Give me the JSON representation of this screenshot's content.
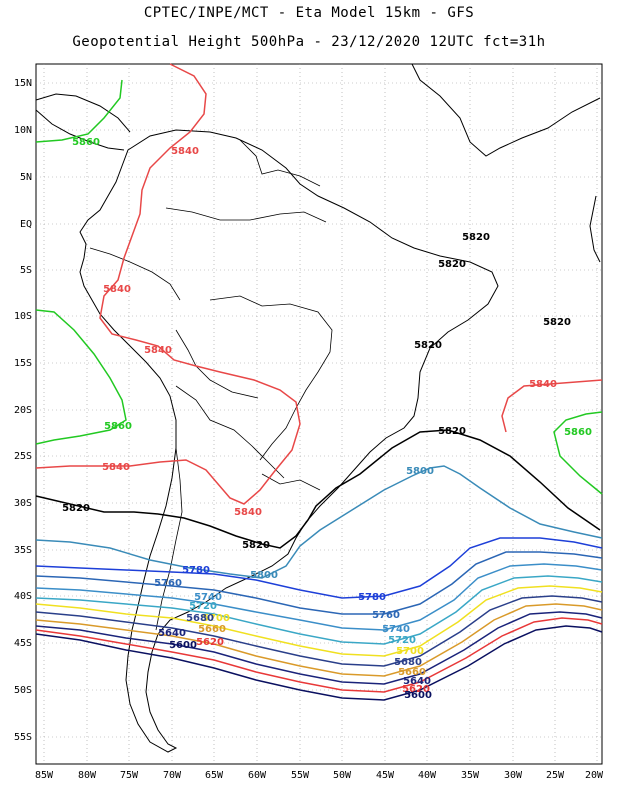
{
  "header": {
    "line1": "CPTEC/INPE/MCT -  Eta Model 15km - GFS",
    "line2": "Geopotential Height 500hPa - 23/12/2020 12UTC fct=31h"
  },
  "axes": {
    "lat_labels": [
      "15N",
      "10N",
      "5N",
      "EQ",
      "5S",
      "10S",
      "15S",
      "20S",
      "25S",
      "30S",
      "35S",
      "40S",
      "45S",
      "50S",
      "55S"
    ],
    "lon_labels": [
      "85W",
      "80W",
      "75W",
      "70W",
      "65W",
      "60W",
      "55W",
      "50W",
      "45W",
      "40W",
      "35W",
      "30W",
      "25W",
      "20W"
    ]
  },
  "contours": [
    {
      "value": "5860",
      "color": "#22c922"
    },
    {
      "value": "5840",
      "color": "#e84848"
    },
    {
      "value": "5820",
      "color": "#000000"
    },
    {
      "value": "5800",
      "color": "#3a8bb8"
    },
    {
      "value": "5780",
      "color": "#1d3fd8"
    },
    {
      "value": "5760",
      "color": "#2b66b5"
    },
    {
      "value": "5740",
      "color": "#3b8ec8"
    },
    {
      "value": "5720",
      "color": "#3aa7c6"
    },
    {
      "value": "5700",
      "color": "#f0e020"
    },
    {
      "value": "5680",
      "color": "#2a3f8a"
    },
    {
      "value": "5660",
      "color": "#d99a2a"
    },
    {
      "value": "5640",
      "color": "#1a237a"
    },
    {
      "value": "5620",
      "color": "#e83838"
    },
    {
      "value": "5600",
      "color": "#0a1060"
    }
  ],
  "contour_labels": [
    {
      "text": "5860",
      "color": "#22c922"
    },
    {
      "text": "5840",
      "color": "#e84848"
    },
    {
      "text": "5840",
      "color": "#e84848"
    },
    {
      "text": "5840",
      "color": "#e84848"
    },
    {
      "text": "5860",
      "color": "#22c922"
    },
    {
      "text": "5840",
      "color": "#e84848"
    },
    {
      "text": "5840",
      "color": "#e84848"
    },
    {
      "text": "5820",
      "color": "#000000"
    },
    {
      "text": "5820",
      "color": "#000000"
    },
    {
      "text": "5820",
      "color": "#000000"
    },
    {
      "text": "5820",
      "color": "#000000"
    },
    {
      "text": "5820",
      "color": "#000000"
    },
    {
      "text": "5820",
      "color": "#000000"
    },
    {
      "text": "5820",
      "color": "#000000"
    },
    {
      "text": "5840",
      "color": "#e84848"
    },
    {
      "text": "5860",
      "color": "#22c922"
    },
    {
      "text": "5800",
      "color": "#3a8bb8"
    },
    {
      "text": "5800",
      "color": "#3a8bb8"
    },
    {
      "text": "5780",
      "color": "#1d3fd8"
    },
    {
      "text": "5780",
      "color": "#1d3fd8"
    },
    {
      "text": "5760",
      "color": "#2b66b5"
    },
    {
      "text": "5760",
      "color": "#2b66b5"
    },
    {
      "text": "5740",
      "color": "#3b8ec8"
    },
    {
      "text": "5740",
      "color": "#3b8ec8"
    },
    {
      "text": "5720",
      "color": "#3aa7c6"
    },
    {
      "text": "5720",
      "color": "#3aa7c6"
    },
    {
      "text": "5700",
      "color": "#f0e020"
    },
    {
      "text": "5700",
      "color": "#f0e020"
    },
    {
      "text": "5680",
      "color": "#2a3f8a"
    },
    {
      "text": "5680",
      "color": "#2a3f8a"
    },
    {
      "text": "5660",
      "color": "#d99a2a"
    },
    {
      "text": "5660",
      "color": "#d99a2a"
    },
    {
      "text": "5640",
      "color": "#1a237a"
    },
    {
      "text": "5640",
      "color": "#1a237a"
    },
    {
      "text": "5620",
      "color": "#e83838"
    },
    {
      "text": "5620",
      "color": "#e83838"
    },
    {
      "text": "5600",
      "color": "#0a1060"
    },
    {
      "text": "5600",
      "color": "#0a1060"
    }
  ]
}
